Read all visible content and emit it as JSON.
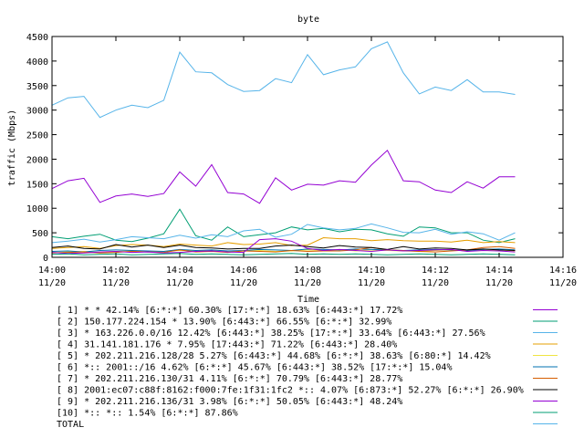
{
  "chart_data": {
    "type": "line",
    "title": "byte",
    "xlabel": "Time",
    "ylabel": "traffic (Mbps)",
    "ylim": [
      0,
      4500
    ],
    "yticks": [
      0,
      500,
      1000,
      1500,
      2000,
      2500,
      3000,
      3500,
      4000,
      4500
    ],
    "xlim": [
      "14:00",
      "14:16"
    ],
    "xticks": [
      {
        "time": "14:00",
        "date": "11/20"
      },
      {
        "time": "14:02",
        "date": "11/20"
      },
      {
        "time": "14:04",
        "date": "11/20"
      },
      {
        "time": "14:06",
        "date": "11/20"
      },
      {
        "time": "14:08",
        "date": "11/20"
      },
      {
        "time": "14:10",
        "date": "11/20"
      },
      {
        "time": "14:12",
        "date": "11/20"
      },
      {
        "time": "14:14",
        "date": "11/20"
      },
      {
        "time": "14:16",
        "date": "11/20"
      }
    ],
    "x": [
      "14:00:00",
      "14:00:30",
      "14:01:00",
      "14:01:30",
      "14:02:00",
      "14:02:30",
      "14:03:00",
      "14:03:30",
      "14:04:00",
      "14:04:30",
      "14:05:00",
      "14:05:30",
      "14:06:00",
      "14:06:30",
      "14:07:00",
      "14:07:30",
      "14:08:00",
      "14:08:30",
      "14:09:00",
      "14:09:30",
      "14:10:00",
      "14:10:30",
      "14:11:00",
      "14:11:30",
      "14:12:00",
      "14:12:30",
      "14:13:00",
      "14:13:30",
      "14:14:00",
      "14:14:30"
    ],
    "grid": false,
    "legend_position": "bottom",
    "series": [
      {
        "name": "[ 1] * * 42.14%  [6:*:*] 60.30% [17:*:*] 18.63% [6:443:*] 17.72%",
        "color": "#9400d3",
        "values": [
          1400,
          1560,
          1610,
          1120,
          1250,
          1290,
          1240,
          1300,
          1740,
          1450,
          1890,
          1320,
          1290,
          1100,
          1620,
          1370,
          1490,
          1470,
          1560,
          1530,
          1880,
          2180,
          1560,
          1540,
          1370,
          1320,
          1540,
          1410,
          1640,
          1640
        ]
      },
      {
        "name": "[ 2] 150.177.224.154 * 13.90%  [6:443:*] 66.55% [6:*:*] 32.99%",
        "color": "#009e73",
        "values": [
          420,
          380,
          430,
          470,
          350,
          320,
          390,
          480,
          980,
          440,
          350,
          620,
          420,
          460,
          500,
          620,
          560,
          590,
          520,
          570,
          560,
          480,
          430,
          620,
          600,
          500,
          500,
          350,
          300,
          380
        ]
      },
      {
        "name": "[ 3] * 163.226.0.0/16 12.42%  [6:443:*] 38.25% [17:*:*] 33.64% [6:443:*] 27.56%",
        "color": "#56b4e9",
        "values": [
          300,
          330,
          370,
          310,
          360,
          420,
          400,
          380,
          450,
          390,
          460,
          420,
          540,
          570,
          410,
          470,
          670,
          600,
          560,
          590,
          680,
          600,
          510,
          500,
          570,
          470,
          520,
          480,
          350,
          500
        ]
      },
      {
        "name": "[ 4] 31.141.181.176 * 7.95%  [17:443:*] 71.22% [6:443:*] 28.40%",
        "color": "#e69f00",
        "values": [
          180,
          200,
          220,
          180,
          240,
          260,
          250,
          220,
          270,
          250,
          230,
          300,
          260,
          270,
          300,
          240,
          250,
          400,
          380,
          380,
          340,
          360,
          340,
          330,
          330,
          310,
          350,
          300,
          320,
          300
        ]
      },
      {
        "name": "[ 5] * 202.211.216.128/28 5.27%  [6:443:*] 44.68% [6:*:*] 38.63% [6:80:*] 14.42%",
        "color": "#f0e442",
        "values": [
          100,
          110,
          120,
          100,
          120,
          130,
          110,
          120,
          140,
          130,
          150,
          120,
          130,
          140,
          120,
          130,
          150,
          140,
          160,
          130,
          150,
          140,
          130,
          120,
          140,
          150,
          130,
          140,
          150,
          130
        ]
      },
      {
        "name": "[ 6] *:: 2001::/16 4.62%  [6:*:*] 45.67% [6:443:*] 38.52% [17:*:*] 15.04%",
        "color": "#0072b2",
        "values": [
          120,
          130,
          110,
          140,
          150,
          140,
          130,
          120,
          160,
          140,
          150,
          130,
          140,
          160,
          150,
          140,
          170,
          160,
          150,
          170,
          160,
          150,
          140,
          150,
          160,
          150,
          140,
          160,
          170,
          150
        ]
      },
      {
        "name": "[ 7] * 202.211.216.130/31 4.11%  [6:*:*] 70.79% [6:443:*] 28.77%",
        "color": "#d55e00",
        "values": [
          90,
          100,
          110,
          90,
          100,
          120,
          110,
          100,
          150,
          110,
          120,
          100,
          130,
          120,
          110,
          140,
          120,
          130,
          130,
          150,
          200,
          150,
          140,
          120,
          110,
          130,
          150,
          200,
          220,
          180
        ]
      },
      {
        "name": "[ 8] 2001:ec07:c88f:8162:f000:7fe:1f31:1fc2 *:: 4.07%  [6:873:*] 52.27% [6:*:*] 26.90%",
        "color": "#000000",
        "values": [
          200,
          230,
          180,
          170,
          260,
          210,
          250,
          200,
          250,
          200,
          190,
          170,
          180,
          180,
          230,
          250,
          220,
          190,
          240,
          210,
          200,
          160,
          220,
          170,
          190,
          180,
          150,
          170,
          150,
          140
        ]
      },
      {
        "name": "[ 9] * 202.211.216.136/31 3.98%  [6:*:*] 50.05% [6:443:*] 48.24%",
        "color": "#9400d3",
        "values": [
          100,
          80,
          90,
          110,
          120,
          100,
          110,
          90,
          100,
          120,
          130,
          110,
          100,
          360,
          380,
          330,
          180,
          140,
          160,
          140,
          120,
          150,
          130,
          140,
          150,
          160,
          120,
          140,
          130,
          110
        ]
      },
      {
        "name": "[10] *:: *:: 1.54%  [6:*:*] 87.86%",
        "color": "#009e73",
        "values": [
          60,
          70,
          50,
          60,
          70,
          50,
          60,
          70,
          80,
          60,
          70,
          60,
          50,
          60,
          70,
          80,
          60,
          70,
          60,
          70,
          60,
          50,
          60,
          70,
          60,
          50,
          60,
          70,
          60,
          50
        ]
      },
      {
        "name": "TOTAL",
        "color": "#56b4e9",
        "values": [
          3100,
          3250,
          3280,
          2850,
          3000,
          3100,
          3050,
          3200,
          4180,
          3780,
          3760,
          3520,
          3380,
          3400,
          3640,
          3560,
          4130,
          3720,
          3820,
          3880,
          4250,
          4390,
          3760,
          3330,
          3470,
          3400,
          3620,
          3370,
          3370,
          3320
        ]
      }
    ]
  }
}
